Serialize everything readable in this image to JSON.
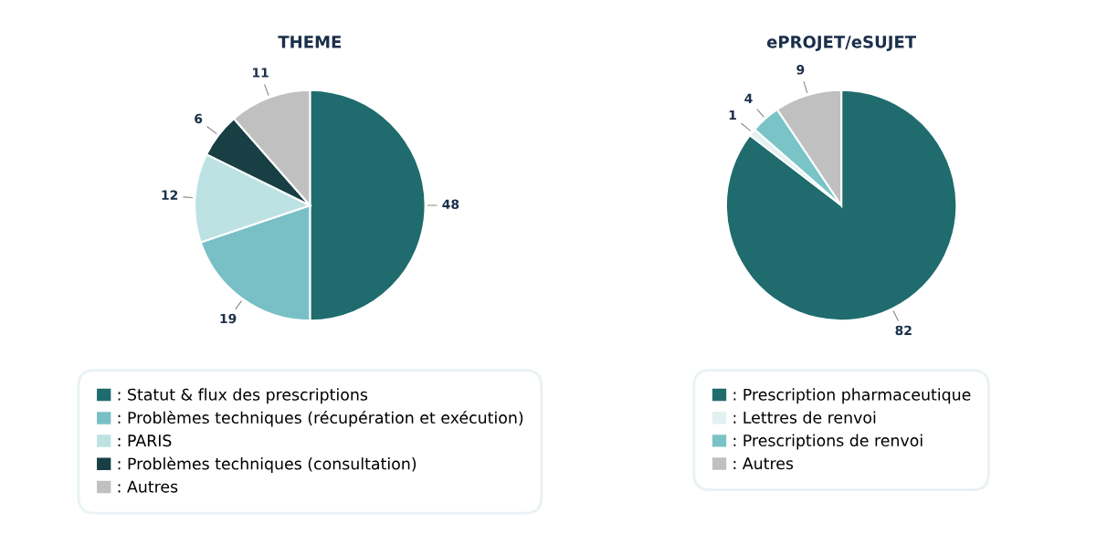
{
  "chart_data": [
    {
      "type": "pie",
      "title": "THEME",
      "categories": [
        ": Statut & flux des prescriptions",
        ": Problèmes techniques (récupération et exécution)",
        ": PARIS",
        ": Problèmes techniques (consultation)",
        ": Autres"
      ],
      "values": [
        48,
        19,
        12,
        6,
        11
      ],
      "colors": [
        "#1f6b6e",
        "#79c0c6",
        "#bde2e3",
        "#173f44",
        "#c0c0c0"
      ],
      "data_labels": true,
      "legend": "bottom"
    },
    {
      "type": "pie",
      "title": "ePROJET/eSUJET",
      "categories": [
        ": Prescription pharmaceutique",
        ": Lettres de renvoi",
        ": Prescriptions de renvoi",
        ": Autres"
      ],
      "values": [
        82,
        1,
        4,
        9
      ],
      "colors": [
        "#1f6b6e",
        "#e3f1f2",
        "#7ac4c8",
        "#c0c0c0"
      ],
      "data_labels": true,
      "legend": "bottom"
    }
  ]
}
